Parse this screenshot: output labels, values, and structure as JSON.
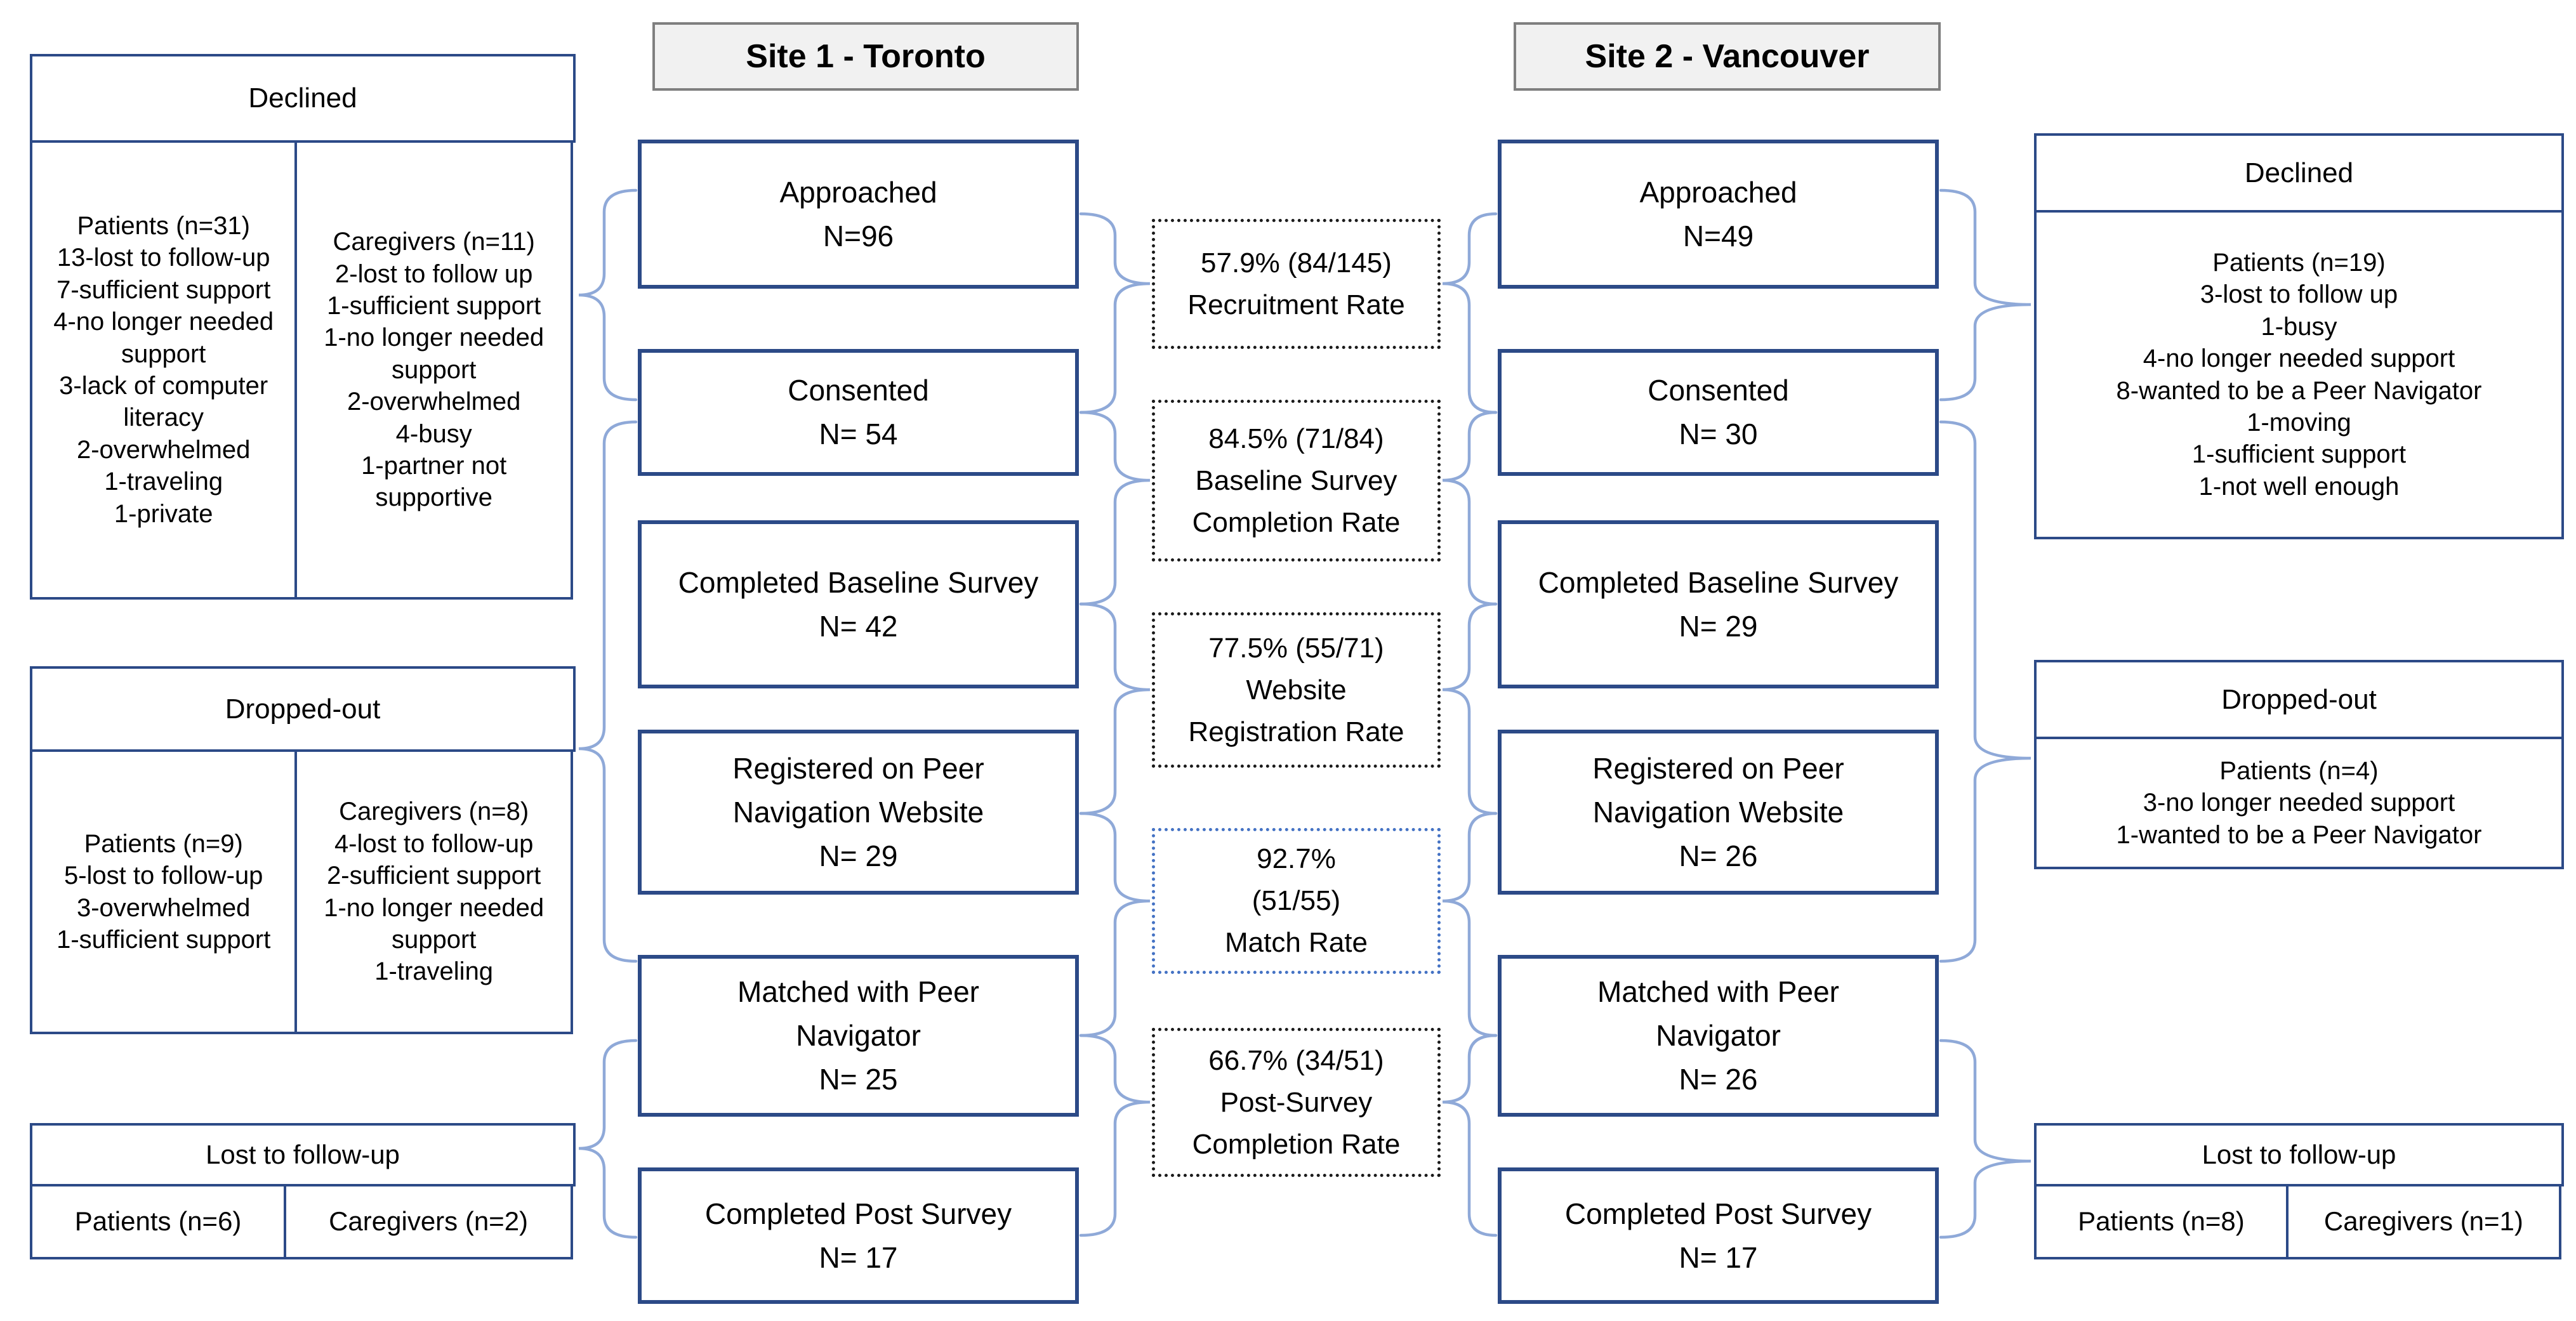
{
  "figure": {
    "site1": {
      "title": "Site 1 - Toronto",
      "stages": [
        {
          "lines": [
            "Approached",
            "N=96"
          ]
        },
        {
          "lines": [
            "Consented",
            "N= 54"
          ]
        },
        {
          "lines": [
            "Completed Baseline Survey",
            "N= 42"
          ]
        },
        {
          "lines": [
            "Registered on Peer",
            "Navigation Website",
            "N= 29"
          ]
        },
        {
          "lines": [
            "Matched with Peer",
            "Navigator",
            "N= 25"
          ]
        },
        {
          "lines": [
            "Completed Post Survey",
            "N= 17"
          ]
        }
      ]
    },
    "site2": {
      "title": "Site 2 - Vancouver",
      "stages": [
        {
          "lines": [
            "Approached",
            "N=49"
          ]
        },
        {
          "lines": [
            "Consented",
            "N= 30"
          ]
        },
        {
          "lines": [
            "Completed Baseline Survey",
            "N= 29"
          ]
        },
        {
          "lines": [
            "Registered on Peer",
            "Navigation Website",
            "N= 26"
          ]
        },
        {
          "lines": [
            "Matched with Peer",
            "Navigator",
            "N= 26"
          ]
        },
        {
          "lines": [
            "Completed Post Survey",
            "N= 17"
          ]
        }
      ]
    },
    "rates": [
      {
        "lines": [
          "57.9% (84/145)",
          "Recruitment Rate"
        ]
      },
      {
        "lines": [
          "84.5% (71/84)",
          "Baseline Survey",
          "Completion Rate"
        ]
      },
      {
        "lines": [
          "77.5% (55/71)",
          "Website",
          "Registration Rate"
        ]
      },
      {
        "lines": [
          "92.7%",
          "(51/55)",
          "Match Rate"
        ]
      },
      {
        "lines": [
          "66.7% (34/51)",
          "Post-Survey",
          "Completion Rate"
        ]
      }
    ],
    "left_outcomes": {
      "declined": {
        "title": "Declined",
        "patients": [
          "Patients (n=31)",
          "13-lost to follow-up",
          "7-sufficient support",
          "4-no longer needed support",
          "3-lack of computer literacy",
          "2-overwhelmed",
          "1-traveling",
          "1-private"
        ],
        "caregivers": [
          "Caregivers (n=11)",
          "2-lost to follow up",
          "1-sufficient support",
          "1-no longer needed support",
          "2-overwhelmed",
          "4-busy",
          "1-partner not supportive"
        ]
      },
      "dropped_out": {
        "title": "Dropped-out",
        "patients": [
          "Patients (n=9)",
          "5-lost to follow-up",
          "3-overwhelmed",
          "1-sufficient support"
        ],
        "caregivers": [
          "Caregivers (n=8)",
          "4-lost to follow-up",
          "2-sufficient support",
          "1-no longer needed support",
          "1-traveling"
        ]
      },
      "lost": {
        "title": "Lost to follow-up",
        "patients": "Patients (n=6)",
        "caregivers": "Caregivers (n=2)"
      }
    },
    "right_outcomes": {
      "declined": {
        "title": "Declined",
        "patients": [
          "Patients (n=19)",
          "3-lost to follow up",
          "1-busy",
          "4-no longer needed support",
          "8-wanted to be a Peer Navigator",
          "1-moving",
          "1-sufficient support",
          "1-not well enough"
        ]
      },
      "dropped_out": {
        "title": "Dropped-out",
        "patients": [
          "Patients (n=4)",
          "3-no longer needed support",
          "1-wanted to be a Peer Navigator"
        ]
      },
      "lost": {
        "title": "Lost to follow-up",
        "patients": "Patients (n=8)",
        "caregivers": "Caregivers (n=1)"
      }
    },
    "colors": {
      "box_border": "#2c4a87",
      "brace": "#8fa9d8",
      "rate_border": "#1a1a1a",
      "rate_border_accent": "#4472c4",
      "site_header_bg": "#f1f1f1",
      "site_header_border": "#7f7f7f"
    }
  }
}
